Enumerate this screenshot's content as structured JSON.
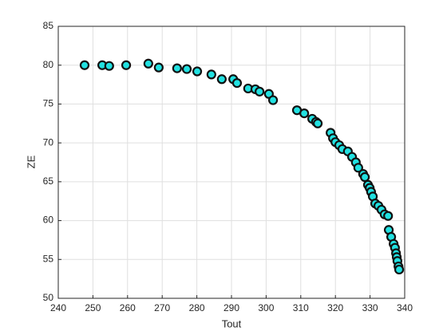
{
  "chart_data": {
    "type": "scatter",
    "x_label": "Tout",
    "y_label": "ZE",
    "xlim": [
      240,
      340
    ],
    "ylim": [
      50,
      85
    ],
    "xticks": [
      240,
      250,
      260,
      270,
      280,
      290,
      300,
      310,
      320,
      330,
      340
    ],
    "yticks": [
      50,
      55,
      60,
      65,
      70,
      75,
      80,
      85
    ],
    "grid": true,
    "color": "#21e1e1",
    "edge_color": "#111111",
    "x": [
      247.6,
      252.7,
      254.7,
      259.6,
      266.0,
      269.0,
      274.3,
      277.1,
      280.1,
      284.2,
      287.2,
      290.5,
      291.6,
      294.8,
      296.9,
      298.1,
      300.8,
      302.0,
      308.9,
      311.0,
      313.3,
      314.4,
      314.9,
      318.6,
      319.3,
      320.0,
      321.1,
      322.0,
      323.6,
      324.8,
      325.9,
      326.6,
      328.0,
      328.5,
      329.4,
      329.9,
      330.3,
      330.8,
      331.5,
      332.4,
      333.3,
      334.2,
      335.2,
      335.4,
      336.1,
      336.8,
      337.2,
      337.5,
      337.7,
      337.9,
      338.2,
      338.4
    ],
    "values": [
      80.0,
      80.0,
      79.9,
      80.0,
      80.2,
      79.7,
      79.6,
      79.5,
      79.2,
      78.8,
      78.2,
      78.2,
      77.7,
      77.0,
      76.9,
      76.6,
      76.3,
      75.5,
      74.2,
      73.8,
      73.1,
      72.7,
      72.5,
      71.3,
      70.6,
      70.1,
      69.7,
      69.2,
      68.9,
      68.2,
      67.5,
      66.8,
      66.0,
      65.6,
      64.6,
      64.2,
      63.7,
      63.1,
      62.2,
      61.9,
      61.4,
      60.8,
      60.6,
      58.8,
      57.9,
      57.0,
      56.5,
      55.8,
      55.3,
      54.8,
      54.1,
      53.7
    ]
  }
}
